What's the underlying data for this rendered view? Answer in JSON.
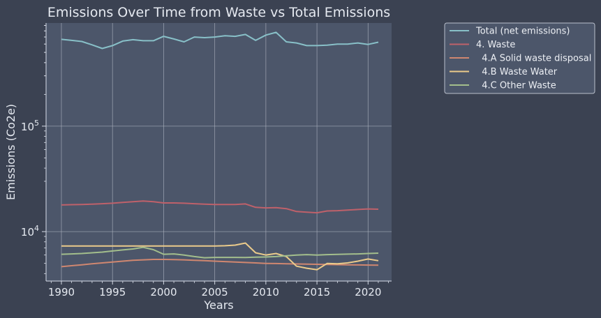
{
  "chart_data": {
    "type": "line",
    "title": "Emissions Over Time from Waste vs Total Emissions",
    "xlabel": "Years",
    "ylabel": "Emissions (Co2e)",
    "yscale": "log",
    "xlim": [
      1988.5,
      2022.3
    ],
    "ylim": [
      3400,
      950000
    ],
    "xticks": [
      1990,
      1995,
      2000,
      2005,
      2010,
      2015,
      2020
    ],
    "yticks": [
      {
        "value": 10000,
        "base": "10",
        "exp": "4"
      },
      {
        "value": 100000,
        "base": "10",
        "exp": "5"
      }
    ],
    "grid": true,
    "legend_position": "outside-top-right",
    "x": [
      1990,
      1991,
      1992,
      1993,
      1994,
      1995,
      1996,
      1997,
      1998,
      1999,
      2000,
      2001,
      2002,
      2003,
      2004,
      2005,
      2006,
      2007,
      2008,
      2009,
      2010,
      2011,
      2012,
      2013,
      2014,
      2015,
      2016,
      2017,
      2018,
      2019,
      2020,
      2021
    ],
    "series": [
      {
        "name": "Total (net emissions)",
        "color": "#88c0c8",
        "values": [
          665000,
          650000,
          635000,
          590000,
          545000,
          580000,
          640000,
          660000,
          645000,
          645000,
          710000,
          670000,
          630000,
          700000,
          690000,
          700000,
          720000,
          710000,
          740000,
          650000,
          730000,
          775000,
          630000,
          615000,
          580000,
          580000,
          585000,
          600000,
          600000,
          615000,
          595000,
          625000
        ]
      },
      {
        "name": "4. Waste",
        "color": "#bf616a",
        "values": [
          17900,
          18000,
          18100,
          18200,
          18400,
          18600,
          18900,
          19200,
          19500,
          19200,
          18700,
          18700,
          18600,
          18400,
          18200,
          18100,
          18100,
          18100,
          18300,
          17000,
          16800,
          16900,
          16500,
          15500,
          15300,
          15100,
          15700,
          15800,
          16000,
          16200,
          16400,
          16300
        ]
      },
      {
        "name": "  4.A Solid waste disposal",
        "color": "#d08770",
        "values": [
          4650,
          4750,
          4850,
          4950,
          5050,
          5150,
          5250,
          5350,
          5400,
          5450,
          5450,
          5430,
          5400,
          5350,
          5300,
          5250,
          5200,
          5150,
          5100,
          5050,
          5000,
          4980,
          4960,
          4940,
          4920,
          4900,
          4880,
          4860,
          4840,
          4830,
          4820,
          4810
        ]
      },
      {
        "name": "  4.B Waste Water",
        "color": "#ebcb8b",
        "values": [
          7300,
          7300,
          7300,
          7300,
          7300,
          7300,
          7300,
          7300,
          7300,
          7300,
          7300,
          7300,
          7300,
          7300,
          7300,
          7300,
          7350,
          7450,
          7800,
          6300,
          6000,
          6200,
          5800,
          4700,
          4500,
          4350,
          5000,
          4950,
          5050,
          5250,
          5500,
          5300
        ]
      },
      {
        "name": "  4.C Other Waste",
        "color": "#a3be8c",
        "values": [
          6100,
          6150,
          6200,
          6300,
          6400,
          6550,
          6700,
          6850,
          7100,
          6750,
          6100,
          6150,
          6000,
          5800,
          5650,
          5700,
          5700,
          5700,
          5680,
          5720,
          5750,
          5800,
          5900,
          6000,
          6050,
          6000,
          6050,
          6080,
          6120,
          6150,
          6200,
          6250
        ]
      }
    ]
  }
}
